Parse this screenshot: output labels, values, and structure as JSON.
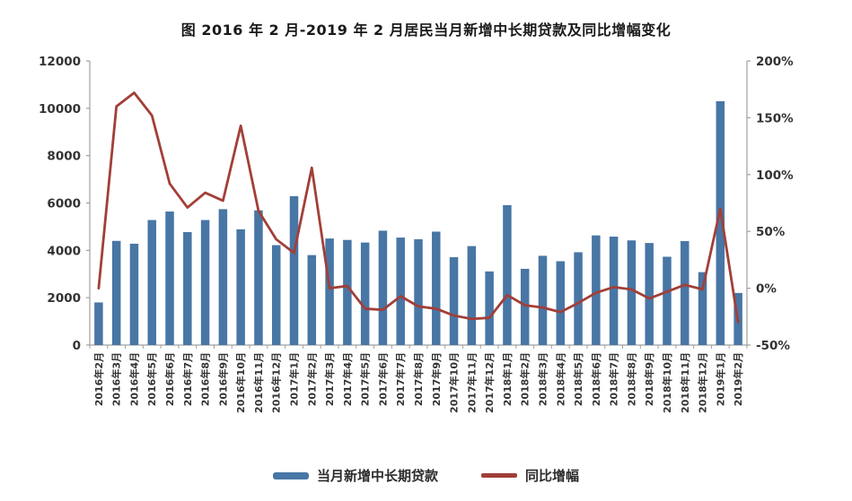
{
  "title": "图  2016 年 2 月-2019 年 2 月居民当月新增中长期贷款及同比增幅变化",
  "colors": {
    "bar": "#4876a5",
    "line": "#a23f38",
    "axis": "#a0a0a0",
    "tick_text": "#333333"
  },
  "chart_data": {
    "type": "combo-bar-line",
    "title": "图 2016年2月-2019年2月居民当月新增中长期贷款及同比增幅变化",
    "categories": [
      "2016年2月",
      "2016年3月",
      "2016年4月",
      "2016年5月",
      "2016年6月",
      "2016年7月",
      "2016年8月",
      "2016年9月",
      "2016年10月",
      "2016年11月",
      "2016年12月",
      "2017年1月",
      "2017年2月",
      "2017年3月",
      "2017年4月",
      "2017年5月",
      "2017年6月",
      "2017年7月",
      "2017年8月",
      "2017年9月",
      "2017年10月",
      "2017年11月",
      "2017年12月",
      "2018年1月",
      "2018年2月",
      "2018年3月",
      "2018年4月",
      "2018年5月",
      "2018年6月",
      "2018年7月",
      "2018年8月",
      "2018年9月",
      "2018年10月",
      "2018年11月",
      "2018年12月",
      "2019年1月",
      "2019年2月"
    ],
    "series": [
      {
        "name": "当月新增中长期贷款",
        "type": "bar",
        "axis": "left",
        "values": [
          1800,
          4400,
          4280,
          5280,
          5640,
          4770,
          5280,
          5740,
          4890,
          5690,
          4220,
          6290,
          3800,
          4500,
          4440,
          4330,
          4830,
          4540,
          4470,
          4790,
          3710,
          4180,
          3110,
          5910,
          3220,
          3770,
          3540,
          3920,
          4630,
          4580,
          4420,
          4310,
          3730,
          4390,
          3080,
          10300,
          2200
        ]
      },
      {
        "name": "同比增幅",
        "type": "line",
        "axis": "right",
        "values_pct": [
          0,
          160,
          172,
          152,
          92,
          71,
          84,
          77,
          143,
          68,
          43,
          31,
          106,
          0,
          2,
          -18,
          -19,
          -7,
          -16,
          -18,
          -24,
          -27,
          -26,
          -6,
          -15,
          -17,
          -21,
          -13,
          -4,
          1,
          -1,
          -9,
          -3,
          3,
          -1,
          70,
          -30
        ]
      }
    ],
    "left_axis": {
      "min": 0,
      "max": 12000,
      "ticks": [
        0,
        2000,
        4000,
        6000,
        8000,
        10000,
        12000
      ]
    },
    "right_axis": {
      "min": -50,
      "max": 200,
      "ticks": [
        {
          "label": "200%",
          "value": 200
        },
        {
          "label": "150%",
          "value": 150
        },
        {
          "label": "100%",
          "value": 100
        },
        {
          "label": "50%",
          "value": 50
        },
        {
          "label": "0%",
          "value": 0
        },
        {
          "label": "-50%",
          "value": -50
        }
      ]
    },
    "grid": false,
    "legend_position": "bottom"
  }
}
